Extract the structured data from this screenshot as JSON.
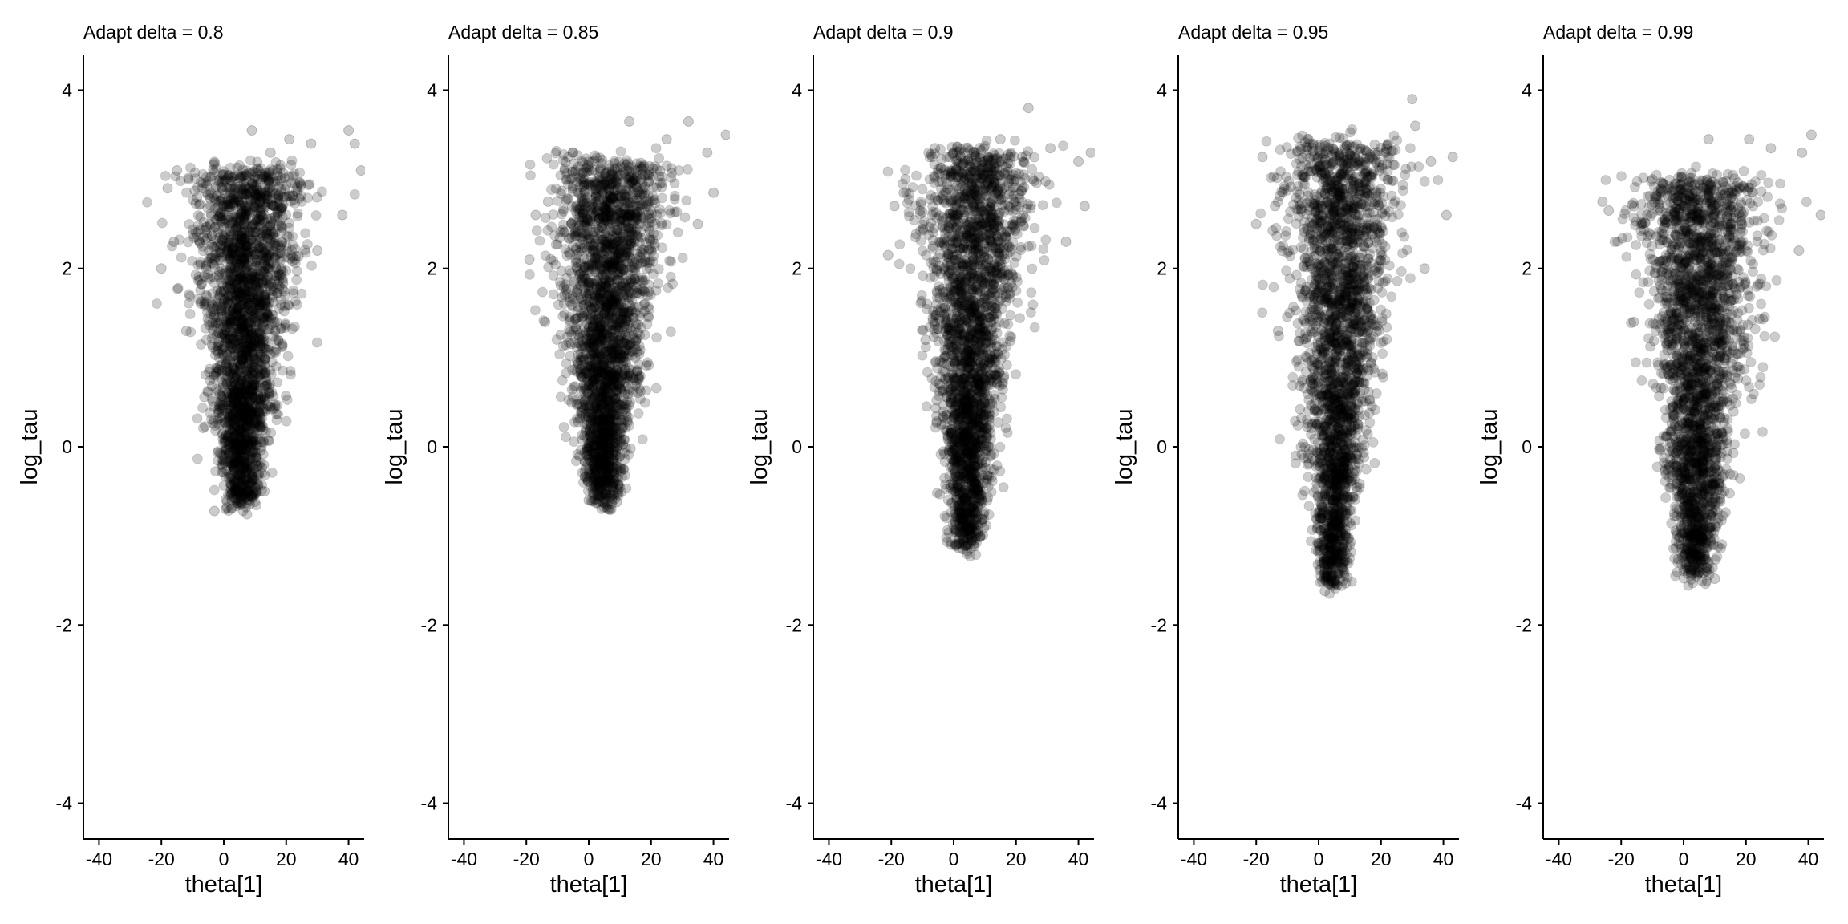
{
  "figure": {
    "type": "scatter",
    "point_color": "#000000",
    "point_opacity": 0.2
  },
  "chart_data": [
    {
      "type": "scatter",
      "title": "Adapt delta = 0.8",
      "xlabel": "theta[1]",
      "ylabel": "log_tau",
      "xlim": [
        -45,
        45
      ],
      "ylim": [
        -4.4,
        4.4
      ],
      "xticks": [
        "-40",
        "-20",
        "0",
        "20",
        "40"
      ],
      "yticks": [
        "-4",
        "-2",
        "0",
        "2",
        "4"
      ],
      "grid": false,
      "cloud": {
        "x_center": 5,
        "y_min": -0.7,
        "y_max": 3.6,
        "x_range_at_top": [
          -20,
          45
        ],
        "x_range_at_bottom": [
          1,
          10
        ]
      },
      "points": [
        {
          "x": -3,
          "y": -0.72
        },
        {
          "x": 1,
          "y": -0.68
        },
        {
          "x": 5,
          "y": -0.62
        },
        {
          "x": 8,
          "y": -0.55
        },
        {
          "x": 13,
          "y": -0.5
        },
        {
          "x": -20,
          "y": 2.0
        },
        {
          "x": -16,
          "y": 2.3
        },
        {
          "x": -18,
          "y": 2.9
        },
        {
          "x": -15,
          "y": 3.1
        },
        {
          "x": 9,
          "y": 3.55
        },
        {
          "x": 15,
          "y": 3.3
        },
        {
          "x": 21,
          "y": 3.45
        },
        {
          "x": 28,
          "y": 3.4
        },
        {
          "x": 40,
          "y": 3.55
        },
        {
          "x": 42,
          "y": 3.4
        },
        {
          "x": 44,
          "y": 3.1
        },
        {
          "x": 38,
          "y": 2.6
        },
        {
          "x": 30,
          "y": 2.2
        },
        {
          "x": -12,
          "y": 1.3
        }
      ]
    },
    {
      "type": "scatter",
      "title": "Adapt delta = 0.85",
      "xlabel": "theta[1]",
      "ylabel": "log_tau",
      "xlim": [
        -45,
        45
      ],
      "ylim": [
        -4.4,
        4.4
      ],
      "xticks": [
        "-40",
        "-20",
        "0",
        "20",
        "40"
      ],
      "yticks": [
        "-4",
        "-2",
        "0",
        "2",
        "4"
      ],
      "grid": false,
      "cloud": {
        "x_center": 5,
        "y_min": -0.65,
        "y_max": 3.7,
        "x_range_at_top": [
          -20,
          45
        ],
        "x_range_at_bottom": [
          0,
          9
        ]
      },
      "points": [
        {
          "x": 0,
          "y": -0.6
        },
        {
          "x": 3,
          "y": -0.55
        },
        {
          "x": 9,
          "y": -0.62
        },
        {
          "x": -19,
          "y": 2.1
        },
        {
          "x": -17,
          "y": 2.6
        },
        {
          "x": -13,
          "y": 2.75
        },
        {
          "x": -5,
          "y": 3.3
        },
        {
          "x": 13,
          "y": 3.65
        },
        {
          "x": 25,
          "y": 3.45
        },
        {
          "x": 32,
          "y": 3.65
        },
        {
          "x": 38,
          "y": 3.3
        },
        {
          "x": 44,
          "y": 3.5
        },
        {
          "x": 40,
          "y": 2.85
        },
        {
          "x": 35,
          "y": 2.5
        },
        {
          "x": -14,
          "y": 1.4
        }
      ]
    },
    {
      "type": "scatter",
      "title": "Adapt delta = 0.9",
      "xlabel": "theta[1]",
      "ylabel": "log_tau",
      "xlim": [
        -45,
        45
      ],
      "ylim": [
        -4.4,
        4.4
      ],
      "xticks": [
        "-40",
        "-20",
        "0",
        "20",
        "40"
      ],
      "yticks": [
        "-4",
        "-2",
        "0",
        "2",
        "4"
      ],
      "grid": false,
      "cloud": {
        "x_center": 5,
        "y_min": -1.15,
        "y_max": 3.8,
        "x_range_at_top": [
          -21,
          45
        ],
        "x_range_at_bottom": [
          0,
          8
        ]
      },
      "points": [
        {
          "x": 1,
          "y": -1.1
        },
        {
          "x": 3,
          "y": -1.15
        },
        {
          "x": 6,
          "y": -1.05
        },
        {
          "x": -21,
          "y": 2.15
        },
        {
          "x": -19,
          "y": 2.7
        },
        {
          "x": -16,
          "y": 2.85
        },
        {
          "x": -6,
          "y": 3.35
        },
        {
          "x": 15,
          "y": 3.45
        },
        {
          "x": 24,
          "y": 3.8
        },
        {
          "x": 31,
          "y": 3.35
        },
        {
          "x": 40,
          "y": 3.2
        },
        {
          "x": 44,
          "y": 3.3
        },
        {
          "x": 42,
          "y": 2.7
        },
        {
          "x": 36,
          "y": 2.3
        },
        {
          "x": -9,
          "y": 1.2
        }
      ]
    },
    {
      "type": "scatter",
      "title": "Adapt delta = 0.95",
      "xlabel": "theta[1]",
      "ylabel": "log_tau",
      "xlim": [
        -45,
        45
      ],
      "ylim": [
        -4.4,
        4.4
      ],
      "xticks": [
        "-40",
        "-20",
        "0",
        "20",
        "40"
      ],
      "yticks": [
        "-4",
        "-2",
        "0",
        "2",
        "4"
      ],
      "grid": false,
      "cloud": {
        "x_center": 5,
        "y_min": -1.6,
        "y_max": 3.9,
        "x_range_at_top": [
          -20,
          45
        ],
        "x_range_at_bottom": [
          1,
          8
        ]
      },
      "points": [
        {
          "x": 2,
          "y": -1.62
        },
        {
          "x": 4,
          "y": -1.5
        },
        {
          "x": 6,
          "y": -1.55
        },
        {
          "x": -20,
          "y": 2.5
        },
        {
          "x": -18,
          "y": 3.25
        },
        {
          "x": -14,
          "y": 2.7
        },
        {
          "x": -5,
          "y": 3.05
        },
        {
          "x": 18,
          "y": 3.3
        },
        {
          "x": 30,
          "y": 3.9
        },
        {
          "x": 31,
          "y": 3.6
        },
        {
          "x": 36,
          "y": 3.2
        },
        {
          "x": 43,
          "y": 3.25
        },
        {
          "x": 41,
          "y": 2.6
        },
        {
          "x": 34,
          "y": 2.0
        },
        {
          "x": -13,
          "y": 1.3
        }
      ]
    },
    {
      "type": "scatter",
      "title": "Adapt delta = 0.99",
      "xlabel": "theta[1]",
      "ylabel": "log_tau",
      "xlim": [
        -45,
        45
      ],
      "ylim": [
        -4.4,
        4.4
      ],
      "xticks": [
        "-40",
        "-20",
        "0",
        "20",
        "40"
      ],
      "yticks": [
        "-4",
        "-2",
        "0",
        "2",
        "4"
      ],
      "grid": false,
      "cloud": {
        "x_center": 4,
        "y_min": -1.5,
        "y_max": 3.5,
        "x_range_at_top": [
          -26,
          45
        ],
        "x_range_at_bottom": [
          0,
          9
        ]
      },
      "points": [
        {
          "x": 2,
          "y": -1.38
        },
        {
          "x": 5,
          "y": -1.4
        },
        {
          "x": 10,
          "y": -1.48
        },
        {
          "x": -26,
          "y": 2.75
        },
        {
          "x": -22,
          "y": 2.3
        },
        {
          "x": -24,
          "y": 2.65
        },
        {
          "x": -10,
          "y": 3.0
        },
        {
          "x": 8,
          "y": 3.45
        },
        {
          "x": 21,
          "y": 3.45
        },
        {
          "x": 28,
          "y": 3.35
        },
        {
          "x": 38,
          "y": 3.3
        },
        {
          "x": 41,
          "y": 3.5
        },
        {
          "x": 44,
          "y": 2.6
        },
        {
          "x": 37,
          "y": 2.2
        },
        {
          "x": -16,
          "y": 1.4
        }
      ]
    }
  ]
}
